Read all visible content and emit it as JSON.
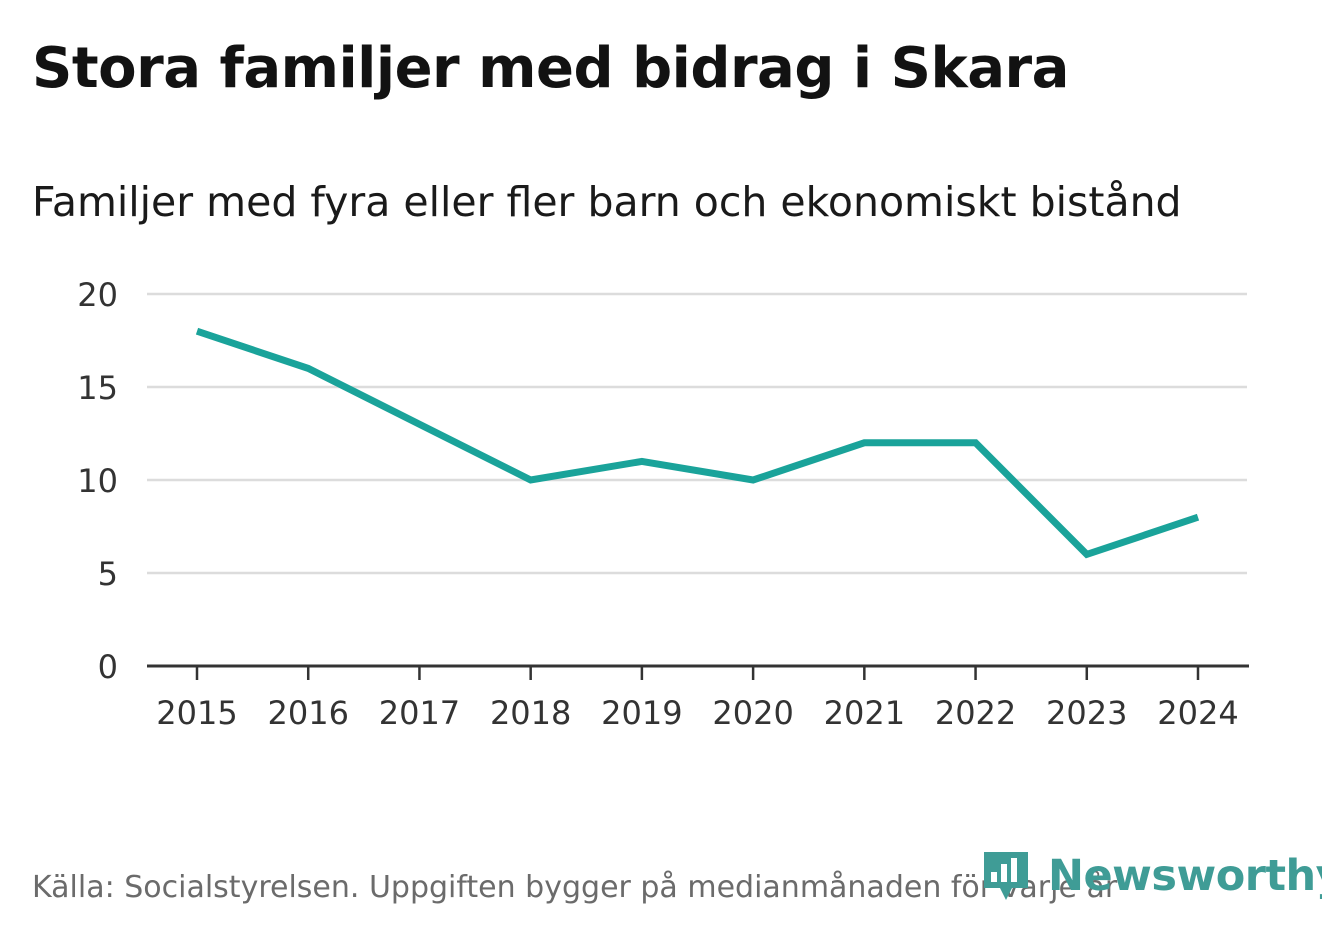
{
  "header": {
    "title": "Stora familjer med bidrag i Skara",
    "subtitle": "Familjer med fyra eller fler barn och ekonomiskt bistånd"
  },
  "footer": {
    "source": "Källa: Socialstyrelsen. Uppgiften bygger på medianmånaden för varje år"
  },
  "brand": {
    "name": "Newsworthy",
    "color": "#3f9c96",
    "icon": "bar-chart-speech-bubble-icon"
  },
  "chart_data": {
    "type": "line",
    "title": "Stora familjer med bidrag i Skara",
    "subtitle": "Familjer med fyra eller fler barn och ekonomiskt bistånd",
    "xlabel": "",
    "ylabel": "",
    "categories": [
      "2015",
      "2016",
      "2017",
      "2018",
      "2019",
      "2020",
      "2021",
      "2022",
      "2023",
      "2024"
    ],
    "series": [
      {
        "values": [
          18,
          16,
          13,
          10,
          11,
          10,
          12,
          12,
          6,
          8
        ],
        "color": "#1aa39a"
      }
    ],
    "ylim": [
      0,
      20
    ],
    "yticks": [
      0,
      5,
      10,
      15,
      20
    ],
    "grid": true,
    "legend": "none"
  }
}
